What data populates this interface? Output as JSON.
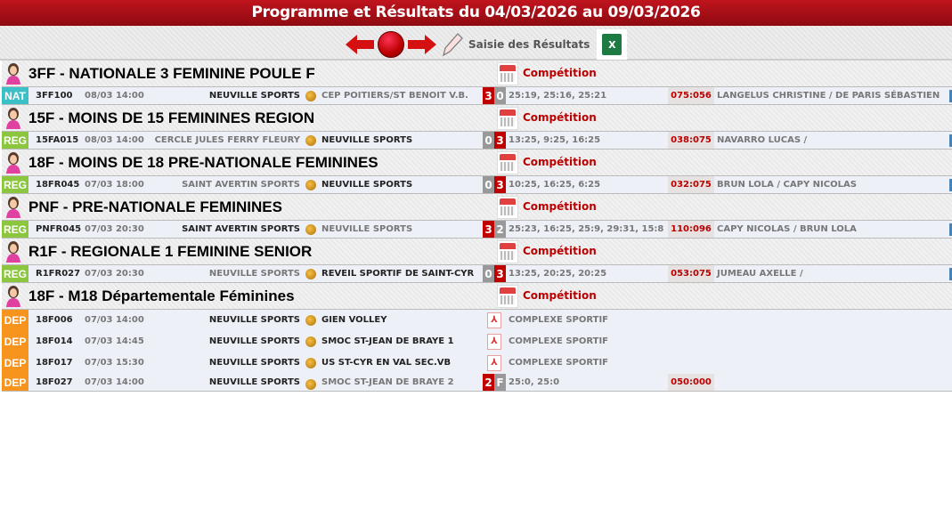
{
  "title": "Programme et Résultats du 04/03/2026 au 09/03/2026",
  "toolbar": {
    "prev_icon": "arrow-left-icon",
    "current_icon": "red-ball-icon",
    "next_icon": "arrow-right-icon",
    "edit_icon": "pencil-icon",
    "saisie_label": "Saisie des Résultats",
    "excel_label": "X"
  },
  "colors": {
    "NAT": "#3cc0c8",
    "REG": "#8cc63f",
    "DEP": "#f7941d",
    "win_score": "#c00000",
    "lose_score": "#999999"
  },
  "competition_label": "Compétition",
  "sections": [
    {
      "title": "3FF - NATIONALE 3 FEMININE POULE F",
      "matches": [
        {
          "level": "NAT",
          "code": "3FF100",
          "date": "08/03 14:00",
          "home": "NEUVILLE SPORTS",
          "away": "CEP POITIERS/ST BENOIT V.B.",
          "winner": "home",
          "s1": "3",
          "s2": "0",
          "sets": "25:19, 25:16, 25:21",
          "points": "075:056",
          "refs": "LANGELUS CHRISTINE / DE PARIS SÉBASTIEN"
        }
      ]
    },
    {
      "title": "15F - MOINS DE 15 FEMININES REGION",
      "matches": [
        {
          "level": "REG",
          "code": "15FA015",
          "date": "08/03 14:00",
          "home": "CERCLE JULES FERRY FLEURY",
          "away": "NEUVILLE SPORTS",
          "winner": "away",
          "s1": "0",
          "s2": "3",
          "sets": "13:25, 9:25, 16:25",
          "points": "038:075",
          "refs": "NAVARRO LUCAS /"
        }
      ]
    },
    {
      "title": "18F - MOINS DE 18 PRE-NATIONALE FEMININES",
      "matches": [
        {
          "level": "REG",
          "code": "18FR045",
          "date": "07/03 18:00",
          "home": "SAINT AVERTIN SPORTS",
          "away": "NEUVILLE SPORTS",
          "winner": "away",
          "s1": "0",
          "s2": "3",
          "sets": "10:25, 16:25, 6:25",
          "points": "032:075",
          "refs": "BRUN LOLA / CAPY NICOLAS"
        }
      ]
    },
    {
      "title": "PNF - PRE-NATIONALE FEMININES",
      "matches": [
        {
          "level": "REG",
          "code": "PNFR045",
          "date": "07/03 20:30",
          "home": "SAINT AVERTIN SPORTS",
          "away": "NEUVILLE SPORTS",
          "winner": "home",
          "s1": "3",
          "s2": "2",
          "sets": "25:23, 16:25, 25:9, 29:31, 15:8",
          "points": "110:096",
          "refs": "CAPY NICOLAS / BRUN LOLA"
        }
      ]
    },
    {
      "title": "R1F - REGIONALE 1 FEMININE SENIOR",
      "matches": [
        {
          "level": "REG",
          "code": "R1FR027",
          "date": "07/03 20:30",
          "home": "NEUVILLE SPORTS",
          "away": "REVEIL SPORTIF DE SAINT-CYR",
          "winner": "away",
          "s1": "0",
          "s2": "3",
          "sets": "13:25, 20:25, 20:25",
          "points": "053:075",
          "refs": "JUMEAU AXELLE /"
        }
      ]
    },
    {
      "title": "18F - M18 Départementale Féminines",
      "matches": [
        {
          "level": "DEP",
          "code": "18F006",
          "date": "07/03 14:00",
          "home": "NEUVILLE SPORTS",
          "away": "GIEN VOLLEY",
          "winner": "none",
          "place": "COMPLEXE SPORTIF"
        },
        {
          "level": "DEP",
          "code": "18F014",
          "date": "07/03 14:45",
          "home": "NEUVILLE SPORTS",
          "away": "SMOC ST-JEAN DE BRAYE 1",
          "winner": "none",
          "place": "COMPLEXE SPORTIF"
        },
        {
          "level": "DEP",
          "code": "18F017",
          "date": "07/03 15:30",
          "home": "NEUVILLE SPORTS",
          "away": "US ST-CYR EN VAL SEC.VB",
          "winner": "none",
          "place": "COMPLEXE SPORTIF"
        },
        {
          "level": "DEP",
          "code": "18F027",
          "date": "07/03 14:00",
          "home": "NEUVILLE SPORTS",
          "away": "SMOC ST-JEAN DE BRAYE 2",
          "winner": "home",
          "s1": "2",
          "s2": "F",
          "sets": "25:0, 25:0",
          "points": "050:000"
        }
      ]
    }
  ]
}
